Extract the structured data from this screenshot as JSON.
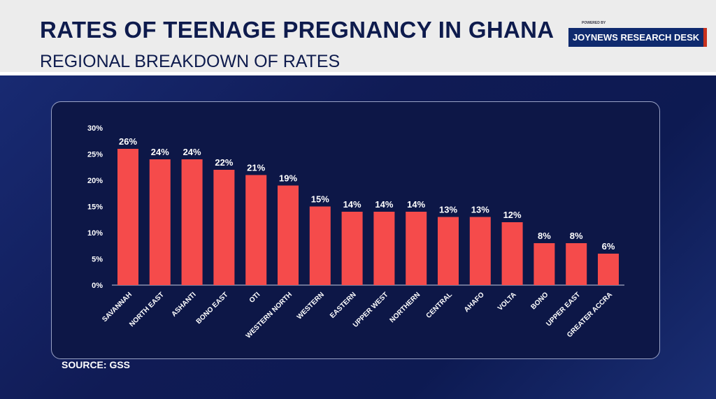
{
  "header": {
    "title": "RATES OF TEENAGE PREGNANCY IN GHANA",
    "subtitle": "REGIONAL BREAKDOWN OF RATES",
    "powered_by": "POWERED BY",
    "brand": "JOYNEWS RESEARCH DESK"
  },
  "source": "SOURCE: GSS",
  "colors": {
    "bar": "#f54b4b",
    "background": "#0f1f5c"
  },
  "chart_data": {
    "type": "bar",
    "title": "RATES OF TEENAGE PREGNANCY IN GHANA",
    "xlabel": "",
    "ylabel": "",
    "ylim": [
      0,
      30
    ],
    "yticks": [
      0,
      5,
      10,
      15,
      20,
      25,
      30
    ],
    "ytick_labels": [
      "0%",
      "5%",
      "10%",
      "15%",
      "20%",
      "25%",
      "30%"
    ],
    "categories": [
      "SAVANNAH",
      "NORTH EAST",
      "ASHANTI",
      "BONO EAST",
      "OTI",
      "WESTERN NORTH",
      "WESTERN",
      "EASTERN",
      "UPPER WEST",
      "NORTHERN",
      "CENTRAL",
      "AHAFO",
      "VOLTA",
      "BONO",
      "UPPER EAST",
      "GREATER ACCRA"
    ],
    "values": [
      26,
      24,
      24,
      22,
      21,
      19,
      15,
      14,
      14,
      14,
      13,
      13,
      12,
      8,
      8,
      6
    ],
    "data_labels": [
      "26%",
      "24%",
      "24%",
      "22%",
      "21%",
      "19%",
      "15%",
      "14%",
      "14%",
      "14%",
      "13%",
      "13%",
      "12%",
      "8%",
      "8%",
      "6%"
    ]
  }
}
